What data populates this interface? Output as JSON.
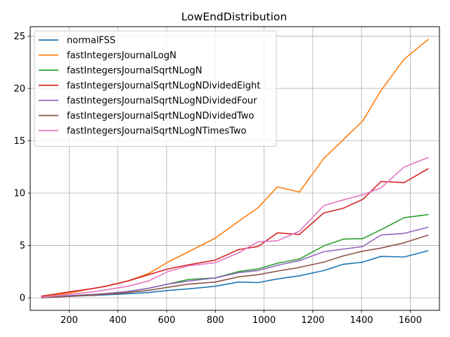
{
  "chart_data": {
    "type": "line",
    "title": "LowEndDistribution",
    "xlabel": "",
    "ylabel": "",
    "xlim": [
      40,
      1720
    ],
    "ylim": [
      -1.2,
      25.9
    ],
    "xticks": [
      200,
      400,
      600,
      800,
      1000,
      1200,
      1400,
      1600
    ],
    "yticks": [
      0,
      5,
      10,
      15,
      20,
      25
    ],
    "grid": true,
    "legend_position": "top-left",
    "x": [
      85,
      210,
      290,
      350,
      440,
      525,
      605,
      690,
      800,
      895,
      975,
      1055,
      1145,
      1245,
      1325,
      1405,
      1480,
      1575,
      1675
    ],
    "series": [
      {
        "name": "normalFSS",
        "color": "#1f77b4",
        "values": [
          0.0,
          0.15,
          0.22,
          0.28,
          0.38,
          0.5,
          0.7,
          0.85,
          1.1,
          1.5,
          1.45,
          1.8,
          2.1,
          2.6,
          3.2,
          3.4,
          3.95,
          3.9,
          4.5
        ]
      },
      {
        "name": "fastIntegersJournalLogN",
        "color": "#ff7f0e",
        "values": [
          0.05,
          0.5,
          0.85,
          1.1,
          1.6,
          2.3,
          3.4,
          4.4,
          5.7,
          7.3,
          8.6,
          10.6,
          10.1,
          13.3,
          15.1,
          16.9,
          19.8,
          22.8,
          24.7
        ]
      },
      {
        "name": "fastIntegersJournalSqrtNLogN",
        "color": "#2ca02c",
        "values": [
          0.0,
          0.2,
          0.3,
          0.35,
          0.6,
          0.9,
          1.3,
          1.75,
          1.9,
          2.5,
          2.75,
          3.3,
          3.7,
          4.95,
          5.6,
          5.65,
          6.5,
          7.65,
          7.95
        ]
      },
      {
        "name": "fastIntegersJournalSqrtNLogNDividedEight",
        "color": "#d62728",
        "values": [
          0.15,
          0.6,
          0.85,
          1.1,
          1.6,
          2.2,
          2.75,
          3.15,
          3.6,
          4.6,
          4.9,
          6.2,
          6.05,
          8.1,
          8.55,
          9.4,
          11.1,
          11.0,
          12.35
        ]
      },
      {
        "name": "fastIntegersJournalSqrtNLogNDividedFour",
        "color": "#9467bd",
        "values": [
          0.0,
          0.2,
          0.3,
          0.4,
          0.6,
          0.9,
          1.3,
          1.6,
          1.9,
          2.4,
          2.6,
          3.1,
          3.55,
          4.4,
          4.65,
          4.9,
          6.0,
          6.15,
          6.75
        ]
      },
      {
        "name": "fastIntegersJournalSqrtNLogNDividedTwo",
        "color": "#8c564b",
        "values": [
          0.0,
          0.15,
          0.25,
          0.35,
          0.5,
          0.7,
          1.0,
          1.3,
          1.5,
          2.0,
          2.2,
          2.55,
          2.9,
          3.4,
          4.0,
          4.45,
          4.75,
          5.25,
          6.0
        ]
      },
      {
        "name": "fastIntegersJournalSqrtNLogNTimesTwo",
        "color": "#e377c2",
        "values": [
          0.05,
          0.35,
          0.55,
          0.75,
          1.1,
          1.6,
          2.5,
          3.05,
          3.35,
          4.3,
          5.35,
          5.45,
          6.35,
          8.8,
          9.35,
          9.85,
          10.5,
          12.5,
          13.4
        ]
      }
    ]
  }
}
